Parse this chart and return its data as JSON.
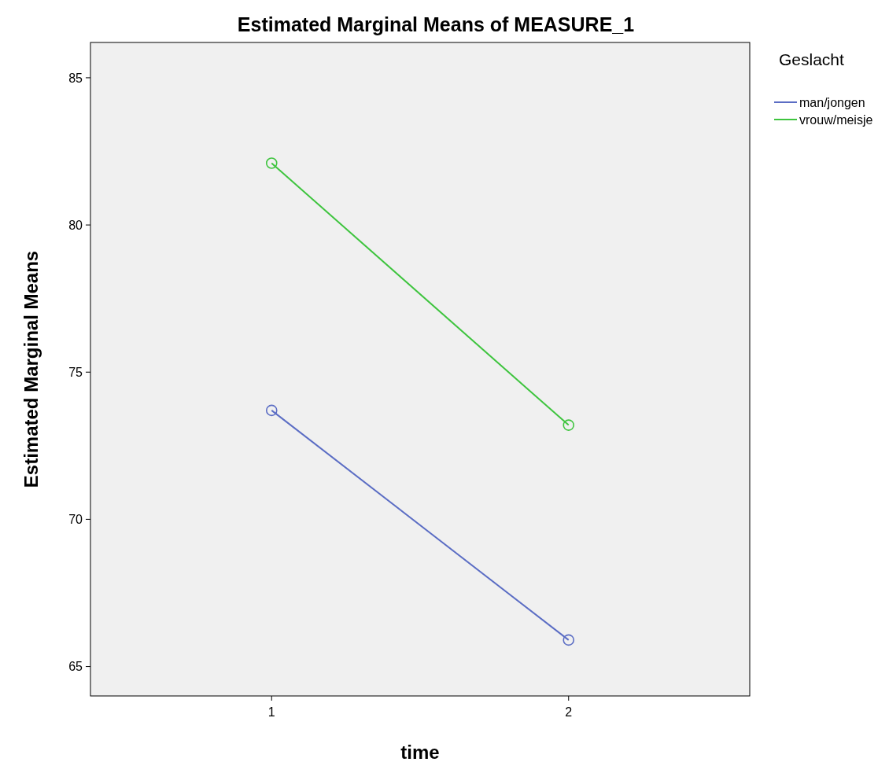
{
  "chart_data": {
    "type": "line",
    "title": "Estimated Marginal Means of MEASURE_1",
    "xlabel": "time",
    "ylabel": "Estimated Marginal Means",
    "legend_title": "Geslacht",
    "categories": [
      "1",
      "2"
    ],
    "series": [
      {
        "name": "man/jongen",
        "color": "#5b6dc4",
        "values": [
          73.7,
          65.9
        ]
      },
      {
        "name": "vrouw/meisje",
        "color": "#3ec43e",
        "values": [
          82.1,
          73.2
        ]
      }
    ],
    "ylim": [
      64,
      86.2
    ],
    "yticks": [
      65,
      70,
      75,
      80,
      85
    ],
    "grid": false,
    "legend": "top right",
    "marker": "circle",
    "line_style": "solid"
  }
}
